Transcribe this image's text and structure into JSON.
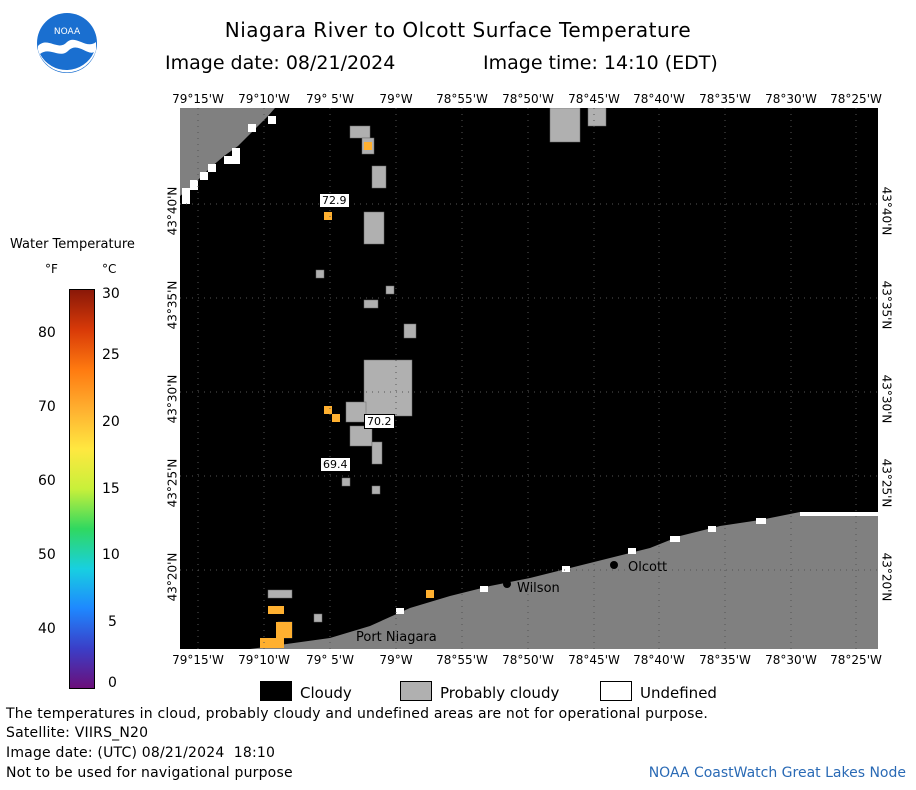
{
  "header": {
    "title": "Niagara River to Olcott Surface Temperature",
    "image_date": "Image date: 08/21/2024",
    "image_time": "Image time: 14:10 (EDT)",
    "logo_text": "NOAA"
  },
  "axes": {
    "lon_labels": [
      "79°15'W",
      "79°10'W",
      "79° 5'W",
      "79°W",
      "78°55'W",
      "78°50'W",
      "78°45'W",
      "78°40'W",
      "78°35'W",
      "78°30'W",
      "78°25'W"
    ],
    "lat_labels": [
      "43°40'N",
      "43°35'N",
      "43°30'N",
      "43°25'N",
      "43°20'N"
    ]
  },
  "legend": {
    "title": "Water Temperature",
    "unit_f": "°F",
    "unit_c": "°C",
    "f_ticks": [
      "80",
      "70",
      "60",
      "50",
      "40"
    ],
    "c_ticks": [
      "30",
      "25",
      "20",
      "15",
      "10",
      "5",
      "0"
    ],
    "colors": [
      "#6b0f7a",
      "#3a3fc8",
      "#1e88ff",
      "#18d0e0",
      "#30d860",
      "#c8f03a",
      "#ffe840",
      "#ffb030",
      "#ff7a10",
      "#d83a08",
      "#8a1808"
    ]
  },
  "map": {
    "places": [
      "Olcott",
      "Wilson",
      "Port Niagara"
    ],
    "temperature_labels": [
      "72.9",
      "70.2",
      "69.4"
    ]
  },
  "key": {
    "cloudy": "Cloudy",
    "probably_cloudy": "Probably cloudy",
    "undefined": "Undefined"
  },
  "footer": {
    "disclaimer": "The temperatures in cloud, probably cloudy and undefined areas are not for operational purpose.",
    "satellite": "Satellite: VIIRS_N20",
    "utc_date": "Image date: (UTC) 08/21/2024  18:10",
    "nav_warning": "Not to be used for navigational purpose",
    "node": "NOAA CoastWatch Great Lakes Node"
  }
}
